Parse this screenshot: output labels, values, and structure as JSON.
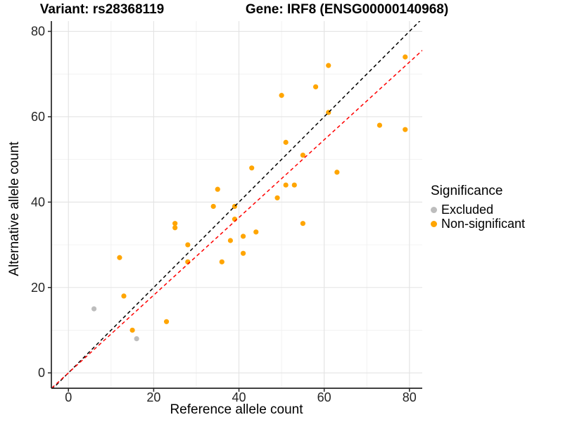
{
  "titles": {
    "variant": "Variant: rs28368119",
    "gene": "Gene: IRF8 (ENSG00000140968)"
  },
  "legend": {
    "title": "Significance",
    "items": [
      {
        "label": "Excluded",
        "color": "#BDBDBD"
      },
      {
        "label": "Non-significant",
        "color": "#FFA500"
      }
    ]
  },
  "colors": {
    "excluded_point": "#BDBDBD",
    "non_significant_point": "#FFA500",
    "identity_line": "#000000",
    "regression_line": "#FF0000",
    "grid_major": "#E3E3E3",
    "grid_minor": "#F0F0F0",
    "axis": "#262626",
    "tick_text": "#262626"
  },
  "chart_data": {
    "type": "scatter",
    "title": "Variant: rs28368119   Gene: IRF8 (ENSG00000140968)",
    "xlabel": "Reference allele count",
    "ylabel": "Alternative allele count",
    "xlim": [
      -4,
      83
    ],
    "ylim": [
      -3.6,
      82.4
    ],
    "x_ticks": [
      0,
      20,
      40,
      60,
      80
    ],
    "y_ticks": [
      0,
      20,
      40,
      60,
      80
    ],
    "grid": {
      "major": [
        0,
        20,
        40,
        60,
        80
      ],
      "minor": [
        10,
        30,
        50,
        70
      ]
    },
    "legend_position": "right",
    "series": [
      {
        "name": "Excluded",
        "color": "#BDBDBD",
        "points": [
          [
            6,
            15
          ],
          [
            16,
            8
          ]
        ]
      },
      {
        "name": "Non-significant",
        "color": "#FFA500",
        "points": [
          [
            12,
            27
          ],
          [
            13,
            18
          ],
          [
            15,
            10
          ],
          [
            23,
            12
          ],
          [
            25,
            34
          ],
          [
            25,
            35
          ],
          [
            28,
            26
          ],
          [
            28,
            30
          ],
          [
            34,
            39
          ],
          [
            35,
            43
          ],
          [
            36,
            26
          ],
          [
            38,
            31
          ],
          [
            39,
            36
          ],
          [
            39,
            39
          ],
          [
            41,
            28
          ],
          [
            41,
            32
          ],
          [
            43,
            48
          ],
          [
            44,
            33
          ],
          [
            49,
            41
          ],
          [
            50,
            65
          ],
          [
            51,
            44
          ],
          [
            51,
            54
          ],
          [
            53,
            44
          ],
          [
            55,
            35
          ],
          [
            55,
            51
          ],
          [
            58,
            67
          ],
          [
            61,
            61
          ],
          [
            61,
            72
          ],
          [
            63,
            47
          ],
          [
            73,
            58
          ],
          [
            79,
            57
          ],
          [
            79,
            74
          ]
        ]
      }
    ],
    "lines": [
      {
        "name": "identity-line",
        "slope": 1,
        "intercept": 0,
        "color": "#000000",
        "style": "dashed"
      },
      {
        "name": "regression-line",
        "slope": 0.91,
        "intercept": 0,
        "color": "#FF0000",
        "style": "dashed"
      }
    ]
  }
}
